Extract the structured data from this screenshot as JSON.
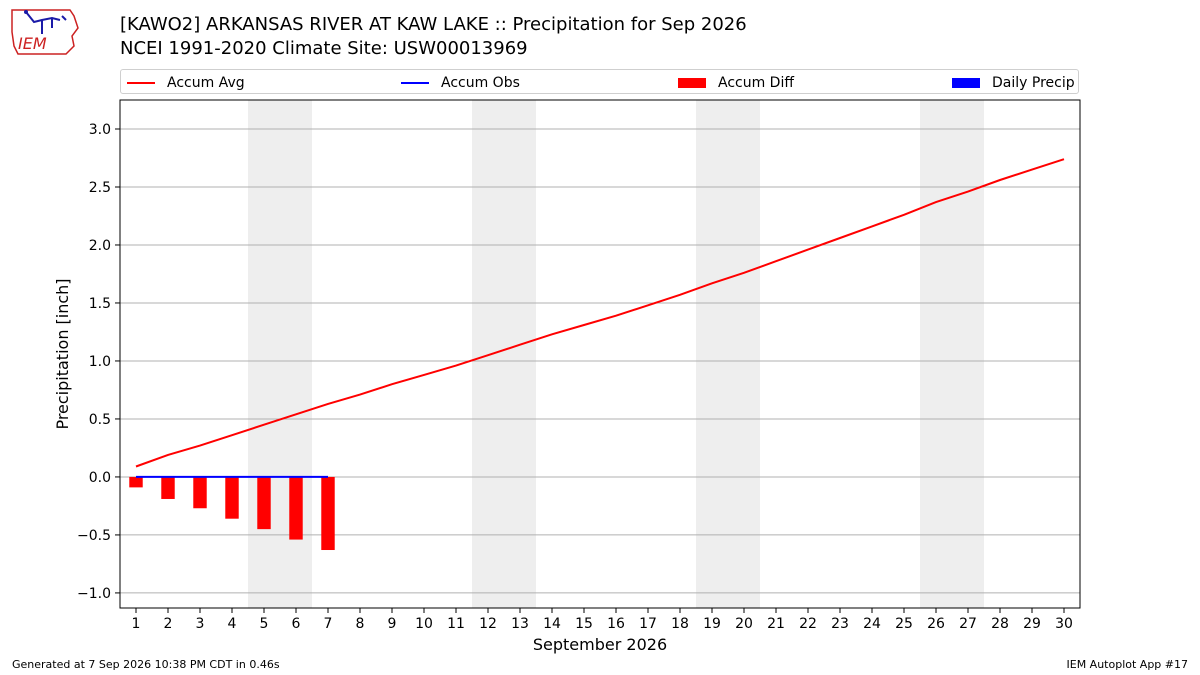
{
  "title_line1": "[KAWO2] ARKANSAS RIVER  AT KAW LAKE :: Precipitation for Sep 2026",
  "title_line2": "NCEI 1991-2020 Climate Site: USW00013969",
  "logo_text": "IEM",
  "legend": [
    {
      "label": "Accum Avg",
      "color": "#ff0000",
      "kind": "line"
    },
    {
      "label": "Accum Obs",
      "color": "#0000ff",
      "kind": "line"
    },
    {
      "label": "Accum Diff",
      "color": "#ff0000",
      "kind": "box"
    },
    {
      "label": "Daily Precip",
      "color": "#0000ff",
      "kind": "box"
    }
  ],
  "footer_left": "Generated at 7 Sep 2026 10:38 PM CDT in 0.46s",
  "footer_right": "IEM Autoplot App #17",
  "chart_data": {
    "type": "line",
    "xlabel": "September 2026",
    "ylabel": "Precipitation [inch]",
    "xlim": [
      0.5,
      30.5
    ],
    "ylim": [
      -1.13,
      3.25
    ],
    "yticks": [
      -1.0,
      -0.5,
      0.0,
      0.5,
      1.0,
      1.5,
      2.0,
      2.5,
      3.0
    ],
    "ytick_labels": [
      "−1.0",
      "−0.5",
      "0.0",
      "0.5",
      "1.0",
      "1.5",
      "2.0",
      "2.5",
      "3.0"
    ],
    "x": [
      1,
      2,
      3,
      4,
      5,
      6,
      7,
      8,
      9,
      10,
      11,
      12,
      13,
      14,
      15,
      16,
      17,
      18,
      19,
      20,
      21,
      22,
      23,
      24,
      25,
      26,
      27,
      28,
      29,
      30
    ],
    "xtick_labels": [
      "1",
      "2",
      "3",
      "4",
      "5",
      "6",
      "7",
      "8",
      "9",
      "10",
      "11",
      "12",
      "13",
      "14",
      "15",
      "16",
      "17",
      "18",
      "19",
      "20",
      "21",
      "22",
      "23",
      "24",
      "25",
      "26",
      "27",
      "28",
      "29",
      "30"
    ],
    "weekend_bands": [
      [
        4.5,
        6.5
      ],
      [
        11.5,
        13.5
      ],
      [
        18.5,
        20.5
      ],
      [
        25.5,
        27.5
      ]
    ],
    "grid": true,
    "legend_position": "top",
    "series": [
      {
        "name": "Accum Avg",
        "color": "#ff0000",
        "type": "line",
        "x": [
          1,
          2,
          3,
          4,
          5,
          6,
          7,
          8,
          9,
          10,
          11,
          12,
          13,
          14,
          15,
          16,
          17,
          18,
          19,
          20,
          21,
          22,
          23,
          24,
          25,
          26,
          27,
          28,
          29,
          30
        ],
        "values": [
          0.09,
          0.19,
          0.27,
          0.36,
          0.45,
          0.54,
          0.63,
          0.71,
          0.8,
          0.88,
          0.96,
          1.05,
          1.14,
          1.23,
          1.31,
          1.39,
          1.48,
          1.57,
          1.67,
          1.76,
          1.86,
          1.96,
          2.06,
          2.16,
          2.26,
          2.37,
          2.46,
          2.56,
          2.65,
          2.74
        ]
      },
      {
        "name": "Accum Obs",
        "color": "#0000ff",
        "type": "line",
        "x": [
          1,
          2,
          3,
          4,
          5,
          6,
          7
        ],
        "values": [
          0,
          0,
          0,
          0,
          0,
          0,
          0
        ]
      },
      {
        "name": "Accum Diff",
        "color": "#ff0000",
        "type": "bar",
        "x": [
          1,
          2,
          3,
          4,
          5,
          6,
          7
        ],
        "values": [
          -0.09,
          -0.19,
          -0.27,
          -0.36,
          -0.45,
          -0.54,
          -0.63
        ]
      },
      {
        "name": "Daily Precip",
        "color": "#0000ff",
        "type": "bar",
        "x": [
          1,
          2,
          3,
          4,
          5,
          6,
          7
        ],
        "values": [
          0,
          0,
          0,
          0,
          0,
          0,
          0
        ]
      }
    ]
  }
}
